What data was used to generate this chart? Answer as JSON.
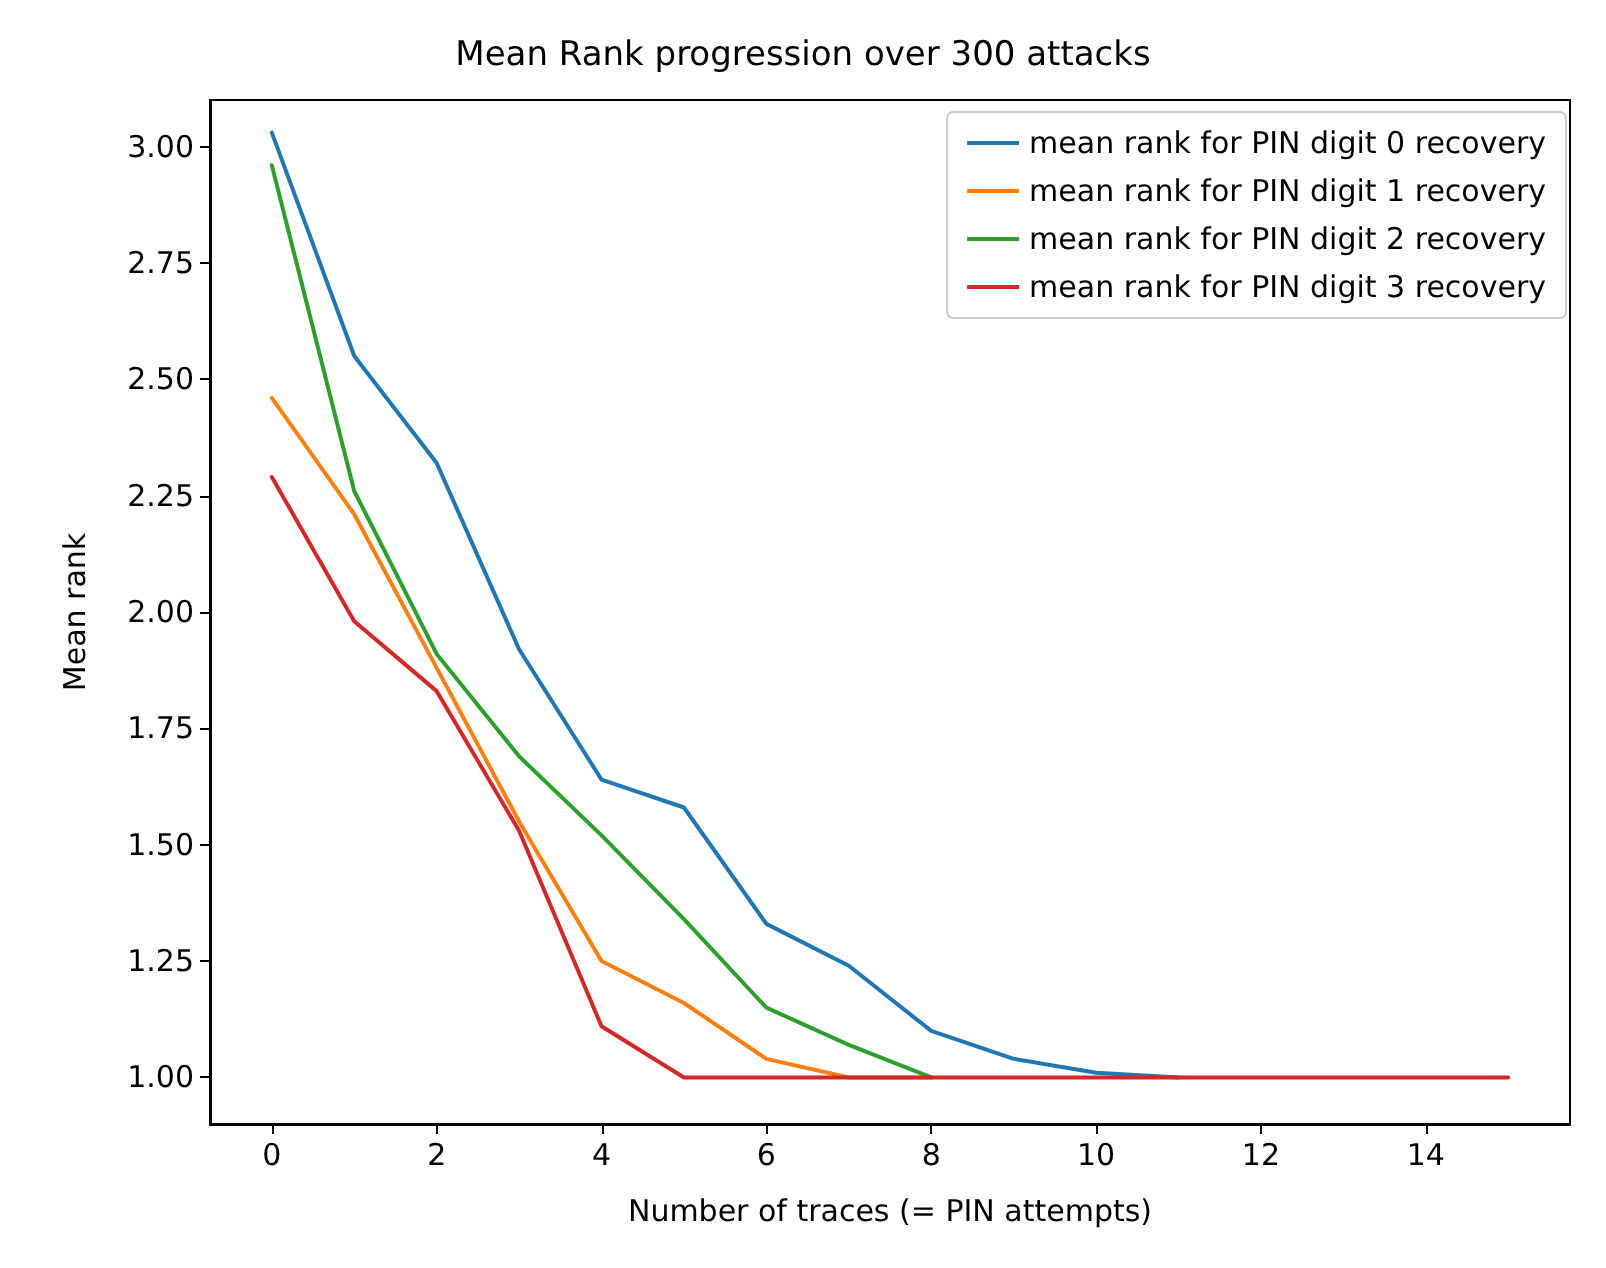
{
  "chart_data": {
    "type": "line",
    "title": "Mean Rank progression over 300 attacks",
    "xlabel": "Number of traces (= PIN attempts)",
    "ylabel": "Mean rank",
    "x": [
      0,
      1,
      2,
      3,
      4,
      5,
      6,
      7,
      8,
      9,
      10,
      11,
      12,
      13,
      14,
      15
    ],
    "series": [
      {
        "name": "mean rank for PIN digit 0 recovery",
        "color": "#1f77b4",
        "values": [
          3.03,
          2.55,
          2.32,
          1.92,
          1.64,
          1.58,
          1.33,
          1.24,
          1.1,
          1.04,
          1.01,
          1.0,
          null,
          null,
          null,
          null
        ]
      },
      {
        "name": "mean rank for PIN digit 1 recovery",
        "color": "#ff7f0e",
        "values": [
          2.46,
          2.21,
          1.88,
          1.55,
          1.25,
          1.16,
          1.04,
          1.0,
          1.0,
          null,
          null,
          null,
          null,
          null,
          null,
          null
        ]
      },
      {
        "name": "mean rank for PIN digit 2 recovery",
        "color": "#2ca02c",
        "values": [
          2.96,
          2.26,
          1.91,
          1.69,
          1.52,
          1.34,
          1.15,
          1.07,
          1.0,
          null,
          null,
          null,
          null,
          null,
          null,
          null
        ]
      },
      {
        "name": "mean rank for PIN digit 3 recovery",
        "color": "#d62728",
        "values": [
          2.29,
          1.98,
          1.83,
          1.53,
          1.11,
          1.0,
          1.0,
          1.0,
          1.0,
          1.0,
          1.0,
          1.0,
          1.0,
          1.0,
          1.0,
          1.0
        ]
      }
    ],
    "xlim": [
      -0.75,
      15.75
    ],
    "xticks": [
      0,
      2,
      4,
      6,
      8,
      10,
      12,
      14
    ],
    "ylim": [
      0.9,
      3.1
    ],
    "yticks": [
      {
        "value": 1.0,
        "label": "1.00"
      },
      {
        "value": 1.25,
        "label": "1.25"
      },
      {
        "value": 1.5,
        "label": "1.50"
      },
      {
        "value": 1.75,
        "label": "1.75"
      },
      {
        "value": 2.0,
        "label": "2.00"
      },
      {
        "value": 2.25,
        "label": "2.25"
      },
      {
        "value": 2.5,
        "label": "2.50"
      },
      {
        "value": 2.75,
        "label": "2.75"
      },
      {
        "value": 3.0,
        "label": "3.00"
      }
    ],
    "grid": false,
    "legend": "top right",
    "marker": "none",
    "line_style": "solid"
  }
}
